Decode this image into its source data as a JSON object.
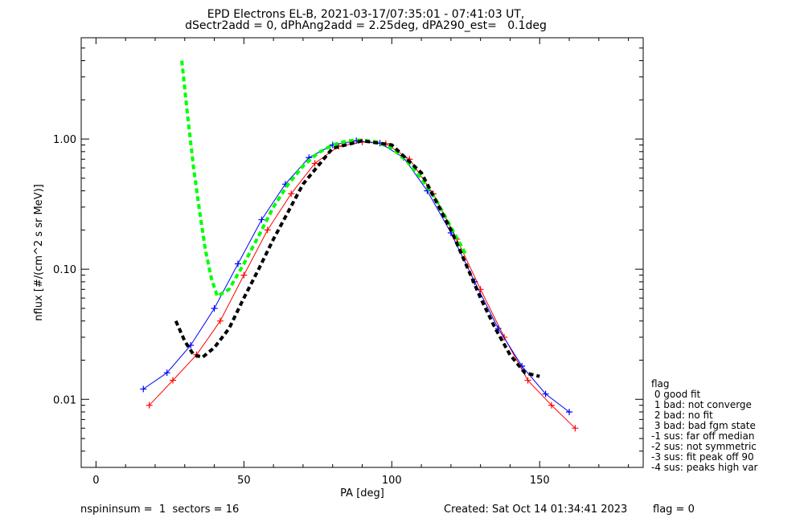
{
  "title": {
    "line1": "EPD Electrons EL-B, 2021-03-17/07:35:01 - 07:41:03 UT,",
    "line2": "dSectr2add = 0, dPhAng2add = 2.25deg, dPA290_est=   0.1deg"
  },
  "footer": {
    "left": "nspininsum =  1  sectors = 16",
    "created": "Created: Sat Oct 14 01:34:41 2023",
    "flag": "flag = 0"
  },
  "legend": {
    "title": "flag",
    "items": [
      " 0 good fit",
      " 1 bad: not converge",
      " 2 bad: no fit",
      " 3 bad: bad fgm state",
      "-1 sus: far off median",
      "-2 sus: not symmetric",
      "-3 sus: fit peak off 90",
      "-4 sus: peaks high var"
    ]
  },
  "colors": {
    "red_series": "#ff0000",
    "blue_series": "#0000ff",
    "fit_green": "#00ff00",
    "fit_black": "#000000"
  },
  "chart_data": {
    "type": "line",
    "title": "EPD Electrons EL-B, 2021-03-17/07:35:01 - 07:41:03 UT,",
    "subtitle": "dSectr2add = 0, dPhAng2add = 2.25deg, dPA290_est=   0.1deg",
    "xlabel": "PA [deg]",
    "ylabel": "nflux [#/(cm^2 s sr MeV)]",
    "xlim": [
      -5,
      185
    ],
    "ylim": [
      0.003,
      6
    ],
    "yscale": "log",
    "xticks": [
      0,
      50,
      100,
      150
    ],
    "xtick_labels": [
      "0",
      "50",
      "100",
      "150"
    ],
    "yticks": [
      0.01,
      0.1,
      1.0
    ],
    "ytick_labels": [
      "0.01",
      "0.10",
      "1.00"
    ],
    "grid": false,
    "legend_position": "right",
    "series": [
      {
        "name": "",
        "color": "#ff0000",
        "marker": "plus",
        "x": [
          18,
          26,
          34,
          42,
          50,
          58,
          66,
          74,
          82,
          90,
          98,
          106,
          114,
          122,
          130,
          138,
          146,
          154,
          162
        ],
        "y": [
          0.009,
          0.014,
          0.022,
          0.04,
          0.09,
          0.2,
          0.38,
          0.65,
          0.88,
          0.95,
          0.92,
          0.7,
          0.38,
          0.17,
          0.07,
          0.03,
          0.014,
          0.009,
          0.006
        ]
      },
      {
        "name": "",
        "color": "#0000ff",
        "marker": "plus",
        "x": [
          16,
          24,
          32,
          40,
          48,
          56,
          64,
          72,
          80,
          88,
          96,
          104,
          112,
          120,
          128,
          136,
          144,
          152,
          160
        ],
        "y": [
          0.012,
          0.016,
          0.026,
          0.05,
          0.11,
          0.24,
          0.45,
          0.72,
          0.9,
          0.97,
          0.93,
          0.72,
          0.4,
          0.19,
          0.08,
          0.035,
          0.018,
          0.011,
          0.008
        ]
      },
      {
        "name": "",
        "color": "#00ff00",
        "style": "dashed",
        "x": [
          29,
          31,
          33,
          35,
          37,
          39,
          41,
          45,
          50,
          55,
          60,
          65,
          70,
          75,
          80,
          85,
          90,
          95,
          100,
          105,
          110,
          115,
          120,
          125
        ],
        "y": [
          4.0,
          1.5,
          0.6,
          0.28,
          0.14,
          0.085,
          0.062,
          0.07,
          0.11,
          0.18,
          0.3,
          0.45,
          0.62,
          0.78,
          0.9,
          0.97,
          0.98,
          0.95,
          0.85,
          0.68,
          0.5,
          0.34,
          0.21,
          0.13
        ]
      },
      {
        "name": "",
        "color": "#000000",
        "style": "dashed",
        "x": [
          27,
          30,
          33,
          36,
          40,
          45,
          50,
          55,
          60,
          70,
          80,
          90,
          100,
          110,
          120,
          125,
          130,
          135,
          140,
          145,
          150
        ],
        "y": [
          0.04,
          0.028,
          0.022,
          0.021,
          0.025,
          0.035,
          0.06,
          0.1,
          0.17,
          0.45,
          0.85,
          0.97,
          0.9,
          0.55,
          0.2,
          0.11,
          0.06,
          0.035,
          0.022,
          0.016,
          0.015
        ]
      }
    ]
  }
}
